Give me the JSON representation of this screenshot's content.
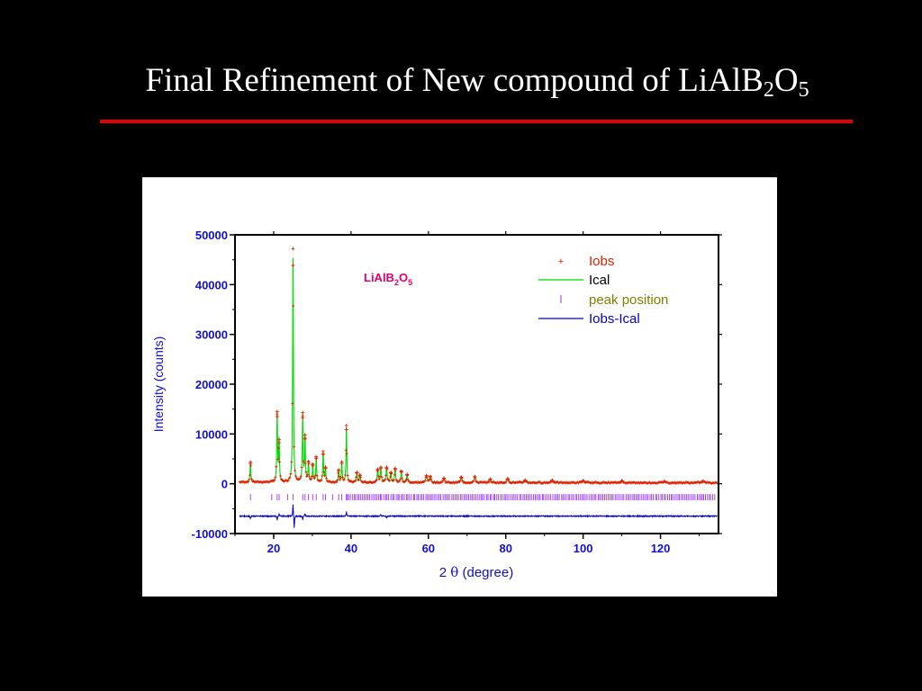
{
  "slide": {
    "title_main": "Final Refinement of New compound  of LiAlB",
    "title_sub1": "2",
    "title_mid": "O",
    "title_sub2": "5"
  },
  "colors": {
    "background": "#000000",
    "rule": "#e00000",
    "axis_text": "#1010cc",
    "compound_label": "#e0006e",
    "iobs": "#e02000",
    "ical": "#00dd00",
    "peak_position": "#9933ff",
    "diff": "#0000cc",
    "peak_position_text": "#808000"
  },
  "chart_data": {
    "type": "line",
    "title": "",
    "xlabel_prefix": "2 ",
    "xlabel_symbol": "θ",
    "xlabel_suffix": " (degree)",
    "ylabel": "Intensity (counts)",
    "xlim": [
      10,
      135
    ],
    "ylim": [
      -10000,
      50000
    ],
    "xticks": [
      20,
      40,
      60,
      80,
      100,
      120
    ],
    "yticks": [
      -10000,
      0,
      10000,
      20000,
      30000,
      40000,
      50000
    ],
    "compound_label": {
      "main": "LiAlB",
      "sub1": "2",
      "mid": "O",
      "sub2": "5"
    },
    "legend": {
      "placement": "top-right",
      "entries": [
        {
          "key": "iobs",
          "label": "Iobs",
          "symbol": "+"
        },
        {
          "key": "ical",
          "label": "Ical",
          "symbol": "line"
        },
        {
          "key": "peak_position",
          "label": "peak position",
          "symbol": "|"
        },
        {
          "key": "diff",
          "label": "Iobs-Ical",
          "symbol": "line"
        }
      ]
    },
    "background_level": 200,
    "peaks": [
      {
        "x": 14.0,
        "height": 4000,
        "width": 0.12
      },
      {
        "x": 20.9,
        "height": 13700,
        "width": 0.12
      },
      {
        "x": 21.4,
        "height": 8300,
        "width": 0.12
      },
      {
        "x": 25.0,
        "height": 45000,
        "width": 0.12
      },
      {
        "x": 27.5,
        "height": 13500,
        "width": 0.12
      },
      {
        "x": 28.1,
        "height": 9200,
        "width": 0.12
      },
      {
        "x": 29.0,
        "height": 4000,
        "width": 0.12
      },
      {
        "x": 30.1,
        "height": 3500,
        "width": 0.12
      },
      {
        "x": 31.0,
        "height": 5000,
        "width": 0.12
      },
      {
        "x": 32.8,
        "height": 6000,
        "width": 0.12
      },
      {
        "x": 33.4,
        "height": 3000,
        "width": 0.12
      },
      {
        "x": 36.8,
        "height": 2500,
        "width": 0.12
      },
      {
        "x": 37.6,
        "height": 4000,
        "width": 0.12
      },
      {
        "x": 38.8,
        "height": 11000,
        "width": 0.12
      },
      {
        "x": 41.5,
        "height": 2000,
        "width": 0.15
      },
      {
        "x": 42.3,
        "height": 1500,
        "width": 0.15
      },
      {
        "x": 46.9,
        "height": 2600,
        "width": 0.15
      },
      {
        "x": 47.7,
        "height": 3000,
        "width": 0.15
      },
      {
        "x": 49.2,
        "height": 3000,
        "width": 0.15
      },
      {
        "x": 50.3,
        "height": 2000,
        "width": 0.15
      },
      {
        "x": 51.4,
        "height": 2800,
        "width": 0.15
      },
      {
        "x": 53.0,
        "height": 2200,
        "width": 0.15
      },
      {
        "x": 54.5,
        "height": 1600,
        "width": 0.15
      },
      {
        "x": 59.5,
        "height": 1400,
        "width": 0.2
      },
      {
        "x": 60.5,
        "height": 1200,
        "width": 0.2
      },
      {
        "x": 64.0,
        "height": 900,
        "width": 0.2
      },
      {
        "x": 68.5,
        "height": 1100,
        "width": 0.2
      },
      {
        "x": 72.0,
        "height": 1200,
        "width": 0.2
      },
      {
        "x": 76.0,
        "height": 700,
        "width": 0.2
      },
      {
        "x": 80.5,
        "height": 800,
        "width": 0.25
      },
      {
        "x": 85.0,
        "height": 500,
        "width": 0.25
      },
      {
        "x": 92.0,
        "height": 500,
        "width": 0.25
      },
      {
        "x": 100.0,
        "height": 400,
        "width": 0.3
      },
      {
        "x": 110.0,
        "height": 350,
        "width": 0.3
      },
      {
        "x": 121.0,
        "height": 300,
        "width": 0.3
      },
      {
        "x": 131.0,
        "height": 300,
        "width": 0.3
      }
    ],
    "peak_marks": {
      "y": -2700,
      "positions": [
        14.0,
        19.5,
        20.9,
        21.4,
        23.6,
        25.0,
        27.5,
        28.1,
        29.0,
        30.1,
        31.0,
        32.8,
        33.4,
        35.2,
        36.8,
        37.6,
        38.8
      ],
      "dense_from": 39,
      "dense_to": 134,
      "dense_step": 0.45
    },
    "difference": {
      "offset": -6500,
      "spikes": [
        {
          "x": 14.0,
          "amp": -500
        },
        {
          "x": 20.9,
          "amp": -800
        },
        {
          "x": 21.4,
          "amp": 500
        },
        {
          "x": 25.0,
          "amp": 2500
        },
        {
          "x": 25.3,
          "amp": -2500
        },
        {
          "x": 27.5,
          "amp": -700
        },
        {
          "x": 28.1,
          "amp": 500
        },
        {
          "x": 38.8,
          "amp": 900
        },
        {
          "x": 47.7,
          "amp": 300
        },
        {
          "x": 49.2,
          "amp": -300
        }
      ]
    }
  }
}
